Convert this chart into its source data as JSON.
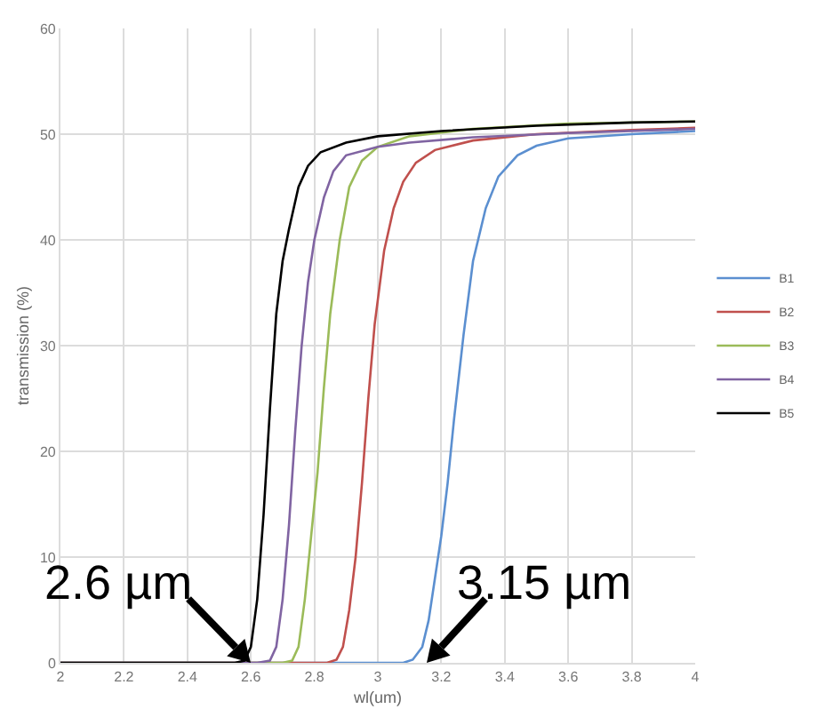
{
  "chart_data": {
    "type": "line",
    "xlabel": "wl(um)",
    "ylabel": "transmission (%)",
    "xlim": [
      2,
      4
    ],
    "xticks": [
      2,
      2.2,
      2.4,
      2.6,
      2.8,
      3,
      3.2,
      3.4,
      3.6,
      3.8,
      4
    ],
    "ylim": [
      0,
      60
    ],
    "yticks": [
      0,
      10,
      20,
      30,
      40,
      50,
      60
    ],
    "grid": true,
    "legend": "right",
    "marker": "none",
    "line_style": "solid",
    "series": [
      {
        "name": "B1",
        "color": "#5b8fd0",
        "x": [
          2,
          3.08,
          3.11,
          3.14,
          3.16,
          3.18,
          3.2,
          3.22,
          3.24,
          3.27,
          3.3,
          3.34,
          3.38,
          3.44,
          3.5,
          3.6,
          3.8,
          4
        ],
        "values": [
          0,
          0,
          0.3,
          1.5,
          4,
          8,
          12,
          17,
          23,
          31,
          38,
          43,
          46,
          48,
          48.9,
          49.6,
          50,
          50.3
        ]
      },
      {
        "name": "B2",
        "color": "#c0504d",
        "x": [
          2,
          2.84,
          2.87,
          2.89,
          2.91,
          2.93,
          2.95,
          2.97,
          2.99,
          3.02,
          3.05,
          3.08,
          3.12,
          3.18,
          3.3,
          3.5,
          3.8,
          4
        ],
        "values": [
          0,
          0,
          0.3,
          1.5,
          5,
          10,
          17,
          25,
          32,
          39,
          43,
          45.5,
          47.3,
          48.5,
          49.4,
          50,
          50.4,
          50.6
        ]
      },
      {
        "name": "B3",
        "color": "#9bbb59",
        "x": [
          2,
          2.7,
          2.73,
          2.75,
          2.77,
          2.79,
          2.81,
          2.83,
          2.85,
          2.88,
          2.91,
          2.95,
          3,
          3.1,
          3.3,
          3.6,
          4
        ],
        "values": [
          0,
          0,
          0.2,
          1.5,
          6,
          12,
          18,
          26,
          33,
          40,
          45,
          47.5,
          48.8,
          49.8,
          50.5,
          51,
          51.2
        ]
      },
      {
        "name": "B4",
        "color": "#8064a2",
        "x": [
          2,
          2.62,
          2.66,
          2.68,
          2.7,
          2.72,
          2.74,
          2.76,
          2.78,
          2.8,
          2.83,
          2.86,
          2.9,
          3,
          3.1,
          3.3,
          3.6,
          4
        ],
        "values": [
          0,
          0,
          0.2,
          1.5,
          6,
          13,
          22,
          30,
          36,
          40,
          44,
          46.5,
          48,
          48.8,
          49.2,
          49.7,
          50.1,
          50.5
        ]
      },
      {
        "name": "B5",
        "color": "#000000",
        "x": [
          2,
          2.55,
          2.58,
          2.6,
          2.62,
          2.64,
          2.66,
          2.68,
          2.7,
          2.72,
          2.75,
          2.78,
          2.82,
          2.9,
          3,
          3.2,
          3.5,
          3.8,
          4
        ],
        "values": [
          0,
          0,
          0.2,
          1.5,
          6,
          14,
          24,
          33,
          38,
          41,
          45,
          47,
          48.3,
          49.2,
          49.8,
          50.3,
          50.8,
          51.1,
          51.2
        ]
      }
    ],
    "annotations": [
      "2.6 µm",
      "3.15 µm"
    ]
  }
}
